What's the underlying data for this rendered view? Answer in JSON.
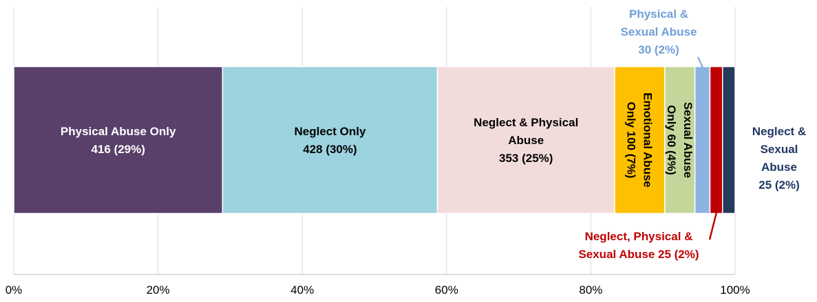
{
  "chart_data": {
    "type": "bar",
    "orientation": "horizontal",
    "stacking": "100% stacked",
    "x_axis": {
      "ticks": [
        "0%",
        "20%",
        "40%",
        "60%",
        "80%",
        "100%"
      ],
      "range": [
        0,
        100
      ],
      "grid": true
    },
    "segments": [
      {
        "name": "Physical Abuse Only",
        "count": 416,
        "percent": 29,
        "color": "#59406b",
        "label_lines": [
          "Physical Abuse Only",
          "416  (29%)"
        ],
        "label_color": "#ffffff",
        "label_mode": "inside"
      },
      {
        "name": "Neglect Only",
        "count": 428,
        "percent": 30,
        "color": "#9dd2df",
        "label_lines": [
          "Neglect Only",
          "428  (30%)"
        ],
        "label_color": "#000000",
        "label_mode": "inside"
      },
      {
        "name": "Neglect & Physical Abuse",
        "count": 353,
        "percent": 25,
        "color": "#f2dcdb",
        "label_lines": [
          "Neglect & Physical",
          "Abuse",
          "353 (25%)"
        ],
        "label_color": "#000000",
        "label_mode": "inside"
      },
      {
        "name": "Emotional Abuse Only",
        "count": 100,
        "percent": 7,
        "color": "#ffc000",
        "label_lines": [
          "Emotional Abuse",
          "Only 100  (7%)"
        ],
        "label_color": "#000000",
        "label_mode": "rotated"
      },
      {
        "name": "Sexual Abuse Only",
        "count": 60,
        "percent": 4,
        "color": "#c4d79b",
        "label_lines": [
          "Sexual Abuse",
          "Only  60  (4%)"
        ],
        "label_color": "#000000",
        "label_mode": "rotated"
      },
      {
        "name": "Physical & Sexual Abuse",
        "count": 30,
        "percent": 2,
        "color": "#8db3e2",
        "label_lines": [
          "Physical &",
          "Sexual Abuse",
          "30 (2%)"
        ],
        "label_color": "#6f9fd8",
        "label_mode": "callout-top"
      },
      {
        "name": "Neglect, Physical & Sexual Abuse",
        "count": 25,
        "percent": 2,
        "color": "#c00000",
        "label_lines": [
          "Neglect, Physical &",
          "Sexual Abuse 25 (2%)"
        ],
        "label_color": "#c00000",
        "label_mode": "callout-bottom"
      },
      {
        "name": "Neglect & Sexual Abuse",
        "count": 25,
        "percent": 2,
        "color": "#243b5e",
        "label_lines": [
          "Neglect &",
          "Sexual",
          "Abuse",
          "25 (2%)"
        ],
        "label_color": "#1f3864",
        "label_mode": "right"
      }
    ]
  }
}
